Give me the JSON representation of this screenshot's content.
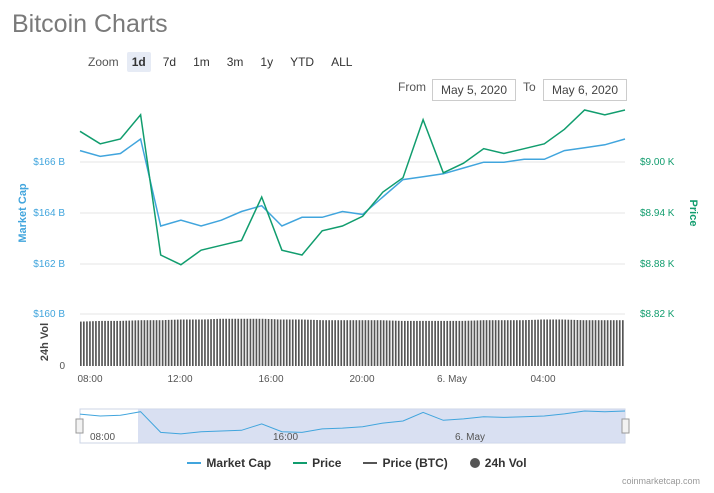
{
  "title": "Bitcoin Charts",
  "zoom": {
    "label": "Zoom",
    "buttons": [
      "1d",
      "7d",
      "1m",
      "3m",
      "1y",
      "YTD",
      "ALL"
    ],
    "active": "1d"
  },
  "range": {
    "from_label": "From",
    "from_value": "May 5, 2020",
    "to_label": "To",
    "to_value": "May 6, 2020"
  },
  "axes": {
    "left_title": "Market Cap",
    "left_ticks": [
      "$166 B",
      "$164 B",
      "$162 B",
      "$160 B"
    ],
    "right_title": "Price",
    "right_ticks": [
      "$9.00 K",
      "$8.94 K",
      "$8.88 K",
      "$8.82 K"
    ],
    "vol_title": "24h Vol",
    "vol_tick": "0",
    "x_ticks": [
      "08:00",
      "12:00",
      "16:00",
      "20:00",
      "6. May",
      "04:00"
    ]
  },
  "navigator": {
    "x_ticks": [
      "08:00",
      "16:00",
      "6. May"
    ]
  },
  "legend": [
    {
      "label": "Market Cap",
      "color": "#41a5dd",
      "kind": "line"
    },
    {
      "label": "Price",
      "color": "#119d6e",
      "kind": "line"
    },
    {
      "label": "Price (BTC)",
      "color": "#555555",
      "kind": "line"
    },
    {
      "label": "24h Vol",
      "color": "#555555",
      "kind": "dot"
    }
  ],
  "credit": "coinmarketcap.com",
  "colors": {
    "market_cap": "#41a5dd",
    "price": "#119d6e",
    "volume": "#555555",
    "navigator_fill": "#cfd8ef"
  },
  "chart_data": {
    "type": "line",
    "x": [
      "07:30",
      "08:00",
      "09:00",
      "09:45",
      "10:00",
      "10:30",
      "11:00",
      "12:00",
      "13:00",
      "14:00",
      "15:00",
      "16:00",
      "17:00",
      "18:00",
      "19:00",
      "20:00",
      "21:00",
      "21:30",
      "22:00",
      "23:00",
      "00:00",
      "01:00",
      "02:00",
      "03:00",
      "04:00",
      "05:00",
      "06:00",
      "07:00"
    ],
    "series": [
      {
        "name": "Market Cap",
        "axis": "left",
        "unit": "B",
        "values": [
          165.6,
          165.4,
          165.5,
          166.0,
          163.0,
          163.2,
          163.0,
          163.2,
          163.5,
          163.7,
          163.0,
          163.3,
          163.3,
          163.5,
          163.4,
          164.0,
          164.6,
          164.7,
          164.8,
          165.0,
          165.2,
          165.2,
          165.3,
          165.3,
          165.6,
          165.7,
          165.8,
          166.0
        ]
      },
      {
        "name": "Price",
        "axis": "right",
        "unit": "K",
        "values": [
          9.008,
          8.995,
          9.0,
          9.025,
          8.88,
          8.87,
          8.885,
          8.89,
          8.895,
          8.94,
          8.885,
          8.88,
          8.905,
          8.91,
          8.92,
          8.945,
          8.96,
          9.02,
          8.965,
          8.975,
          8.99,
          8.985,
          8.99,
          8.995,
          9.01,
          9.03,
          9.025,
          9.03
        ]
      },
      {
        "name": "24h Vol",
        "axis": "vol",
        "values": [
          0.62,
          0.63,
          0.63,
          0.64,
          0.64,
          0.65,
          0.65,
          0.66,
          0.66,
          0.66,
          0.65,
          0.65,
          0.64,
          0.64,
          0.64,
          0.64,
          0.63,
          0.63,
          0.63,
          0.63,
          0.64,
          0.64,
          0.64,
          0.65,
          0.65,
          0.64,
          0.64,
          0.64
        ]
      }
    ],
    "left_range": [
      160,
      167
    ],
    "right_range": [
      8.82,
      9.03
    ],
    "vol_range": [
      0,
      1
    ],
    "legend_position": "bottom"
  }
}
